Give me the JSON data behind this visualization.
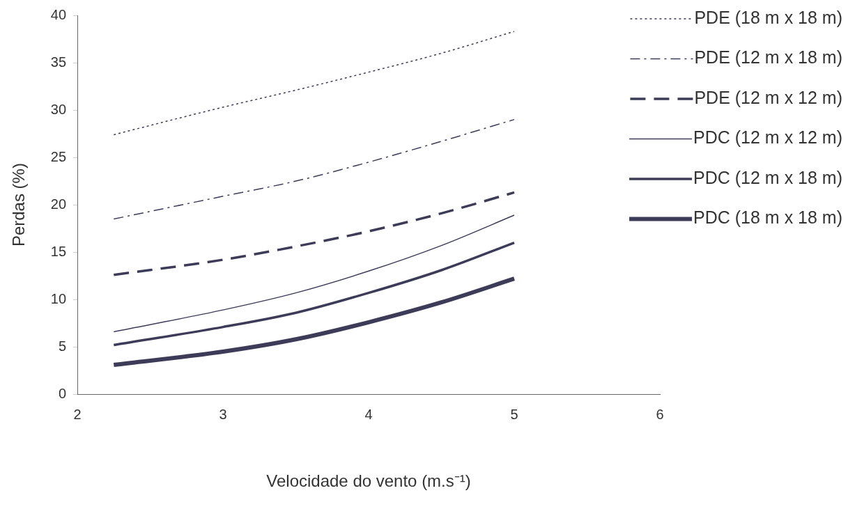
{
  "chart_data": {
    "type": "line",
    "xlabel": "Velocidade do vento (m.s⁻¹)",
    "ylabel": "Perdas (%)",
    "xlim": [
      2,
      6
    ],
    "xticks": [
      2,
      3,
      4,
      5,
      6
    ],
    "ylim": [
      0,
      40
    ],
    "yticks": [
      0,
      5,
      10,
      15,
      20,
      25,
      30,
      35,
      40
    ],
    "grid": false,
    "legend": "right",
    "marker": "none",
    "x": [
      2.25,
      3,
      3.5,
      4,
      4.5,
      5
    ],
    "series": [
      {
        "name": "PDE (18 m x 18 m)",
        "color": "#3c3c58",
        "line_style": "dotted",
        "values": [
          27.4,
          30.3,
          32.1,
          34.0,
          36.0,
          38.3
        ]
      },
      {
        "name": "PDE (12 m x 18 m)",
        "color": "#3c3c58",
        "line_style": "dashdot",
        "values": [
          18.5,
          20.9,
          22.5,
          24.5,
          26.7,
          29.0
        ]
      },
      {
        "name": "PDE (12 m x 12 m)",
        "color": "#3c3c58",
        "line_style": "dashed",
        "values": [
          12.6,
          14.2,
          15.6,
          17.2,
          19.1,
          21.3
        ]
      },
      {
        "name": "PDC (12 m x 12 m)",
        "color": "#3c3c58",
        "line_style": "solid",
        "values": [
          6.6,
          8.9,
          10.7,
          13.0,
          15.7,
          18.9
        ]
      },
      {
        "name": "PDC (12 m x 18 m)",
        "color": "#3c3c58",
        "line_style": "solid",
        "values": [
          5.2,
          7.1,
          8.6,
          10.7,
          13.1,
          16.0
        ]
      },
      {
        "name": "PDC (18 m x 18 m)",
        "color": "#3c3c58",
        "line_style": "solid",
        "values": [
          3.1,
          4.5,
          5.8,
          7.6,
          9.7,
          12.2
        ]
      }
    ]
  }
}
